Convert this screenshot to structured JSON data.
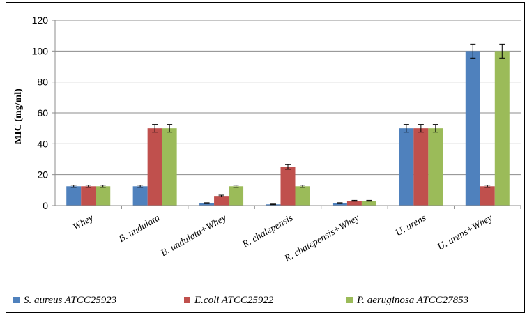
{
  "chart_data": {
    "type": "bar",
    "ylabel": "MIC  (mg/ml)",
    "xlabel": "",
    "ylim": [
      0,
      120
    ],
    "yticks": [
      0,
      20,
      40,
      60,
      80,
      100,
      120
    ],
    "grid": true,
    "legend_position": "bottom",
    "categories": [
      "Whey",
      "B. undulata",
      "B. undulata+Whey",
      "R. chalepensis",
      "R. chalepensis+Whey",
      "U. urens",
      "U. urens+Whey"
    ],
    "series": [
      {
        "name": "S. aureus ATCC25923",
        "color": "#4F81BD",
        "values": [
          12.5,
          12.5,
          1.56,
          0.78,
          1.56,
          50,
          100
        ],
        "errors": [
          0.7,
          0.7,
          0.3,
          0.2,
          0.3,
          2.5,
          4.5
        ]
      },
      {
        "name": "E.coli ATCC25922",
        "color": "#C0504D",
        "values": [
          12.5,
          50,
          6.25,
          25,
          3.12,
          50,
          12.5
        ],
        "errors": [
          0.7,
          2.5,
          0.5,
          1.5,
          0.3,
          2.5,
          0.7
        ]
      },
      {
        "name": "P. aeruginosa ATCC27853",
        "color": "#9BBB59",
        "values": [
          12.5,
          50,
          12.5,
          12.5,
          3.12,
          50,
          100
        ],
        "errors": [
          0.7,
          2.5,
          0.7,
          0.7,
          0.3,
          2.5,
          4.5
        ]
      }
    ]
  }
}
